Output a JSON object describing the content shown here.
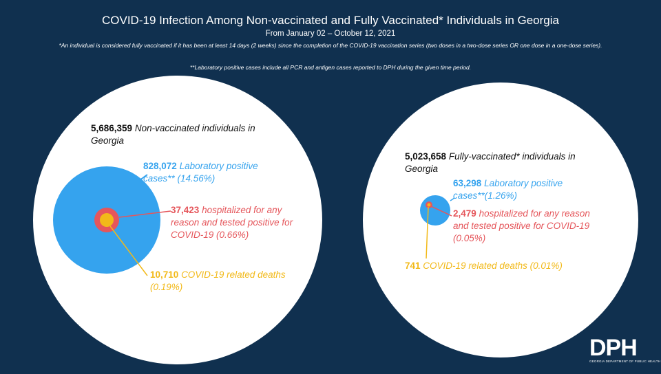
{
  "header": {
    "title": "COVID-19 Infection Among Non-vaccinated and Fully Vaccinated* Individuals in Georgia",
    "subtitle": "From January 02 – October 12, 2021",
    "note1": "*An individual is considered fully vaccinated if it has been at least 14 days (2 weeks) since the completion of the COVID-19 vaccination series (two doses in a two-dose series OR one dose in a one-dose series).",
    "note2": "**Laboratory positive cases include all PCR and antigen cases reported to DPH during the given time period."
  },
  "colors": {
    "background": "#10304f",
    "population": "#ffffff",
    "cases": "#35a3ee",
    "hospitalized": "#e5565b",
    "deaths": "#f2b918"
  },
  "non_vaccinated": {
    "population_value": "5,686,359",
    "population_text": "Non-vaccinated individuals in Georgia",
    "cases_value": "828,072",
    "cases_text": "Laboratory positive cases** (14.56%)",
    "hosp_value": "37,423",
    "hosp_text": "hospitalized for any reason and tested positive for COVID-19 (0.66%)",
    "deaths_value": "10,710",
    "deaths_text": "COVID-19 related deaths (0.19%)"
  },
  "fully_vaccinated": {
    "population_value": "5,023,658",
    "population_text": "Fully-vaccinated* individuals in Georgia",
    "cases_value": "63,298",
    "cases_text": "Laboratory positive cases**(1.26%)",
    "hosp_value": "2,479",
    "hosp_text": "hospitalized for any reason and tested positive for COVID-19 (0.05%)",
    "deaths_value": "741",
    "deaths_text": "COVID-19 related deaths (0.01%)"
  },
  "logo": {
    "letters": "DPH",
    "subtext": "GEORGIA DEPARTMENT OF PUBLIC HEALTH"
  }
}
